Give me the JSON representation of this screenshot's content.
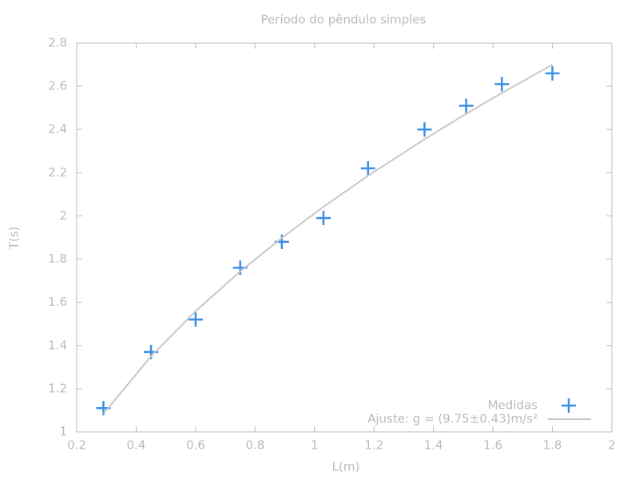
{
  "chart_data": {
    "type": "scatter",
    "title": "Período do pêndulo simples",
    "xlabel": "L(m)",
    "ylabel": "T(s)",
    "xlim": [
      0.2,
      2
    ],
    "xticks": [
      0.2,
      0.4,
      0.6,
      0.8,
      1,
      1.2,
      1.4,
      1.6,
      1.8,
      2
    ],
    "ylim": [
      1,
      2.8
    ],
    "yticks": [
      1,
      1.2,
      1.4,
      1.6,
      1.8,
      2,
      2.2,
      2.4,
      2.6,
      2.8
    ],
    "grid": false,
    "legend": "bottom-right",
    "series": [
      {
        "name": "Medidas",
        "color": "#3a8ee6",
        "mode": "markers",
        "x": [
          0.29,
          0.45,
          0.6,
          0.75,
          0.89,
          1.03,
          1.18,
          1.37,
          1.51,
          1.63,
          1.8
        ],
        "values": [
          1.11,
          1.37,
          1.52,
          1.76,
          1.88,
          1.99,
          2.22,
          2.4,
          2.51,
          2.61,
          2.66
        ]
      },
      {
        "name": "Ajuste: g = (9.75±0.43)m/s²",
        "color": "#c8c8c8",
        "mode": "lines",
        "x": [
          0.29,
          0.45,
          0.6,
          0.75,
          0.89,
          1.03,
          1.18,
          1.37,
          1.51,
          1.63,
          1.8
        ],
        "values": [
          1.084,
          1.35,
          1.559,
          1.743,
          1.898,
          2.042,
          2.186,
          2.355,
          2.473,
          2.569,
          2.7
        ]
      }
    ]
  }
}
